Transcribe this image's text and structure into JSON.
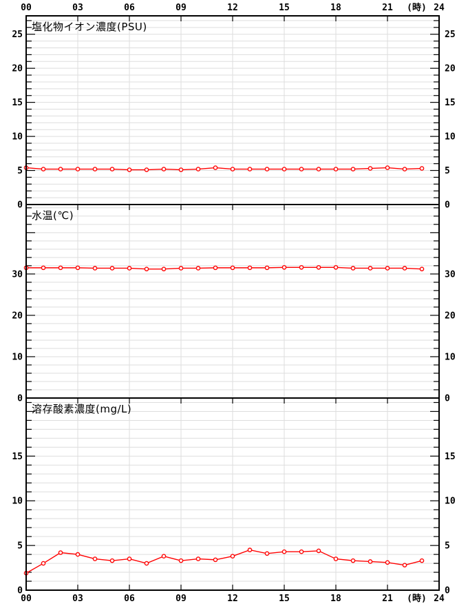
{
  "window": {
    "description": "Three stacked 24-hour water-quality time-series charts",
    "background": "#ffffff"
  },
  "colors": {
    "line": "#ff0000",
    "marker_fill": "#ffffff",
    "grid": "#dddddd",
    "axis": "#000000",
    "text": "#000000"
  },
  "x_axis": {
    "xlim": [
      0,
      24
    ],
    "tick_hours": [
      0,
      3,
      6,
      9,
      12,
      15,
      18,
      21,
      24
    ],
    "tick_labels": [
      "00",
      "03",
      "06",
      "09",
      "12",
      "15",
      "18",
      "21",
      "24"
    ],
    "unit_label": "(時)",
    "unit_label_hour": 22.7,
    "shown_top": true,
    "shown_bottom": true
  },
  "chart_data": [
    {
      "type": "line",
      "title": "塩化物イオン濃度(PSU)",
      "xlabel": "(時)",
      "ylabel": "",
      "x": [
        0,
        1,
        2,
        3,
        4,
        5,
        6,
        7,
        8,
        9,
        10,
        11,
        12,
        13,
        14,
        15,
        16,
        17,
        18,
        19,
        20,
        21,
        22,
        23
      ],
      "values": [
        5.4,
        5.2,
        5.2,
        5.2,
        5.2,
        5.2,
        5.1,
        5.1,
        5.2,
        5.1,
        5.2,
        5.4,
        5.2,
        5.2,
        5.2,
        5.2,
        5.2,
        5.2,
        5.2,
        5.2,
        5.3,
        5.4,
        5.2,
        5.3
      ],
      "ylim": [
        0,
        27.7
      ],
      "ytick_step": 1,
      "ylabel_step": 5,
      "ytick_labels": [
        0,
        5,
        10,
        15,
        20,
        25
      ],
      "grid": true,
      "legend": "none",
      "marker": "circle"
    },
    {
      "type": "line",
      "title": "水温(℃)",
      "xlabel": "(時)",
      "ylabel": "",
      "x": [
        0,
        1,
        2,
        3,
        4,
        5,
        6,
        7,
        8,
        9,
        10,
        11,
        12,
        13,
        14,
        15,
        16,
        17,
        18,
        19,
        20,
        21,
        22,
        23
      ],
      "values": [
        31.5,
        31.5,
        31.5,
        31.5,
        31.4,
        31.4,
        31.4,
        31.2,
        31.2,
        31.4,
        31.4,
        31.5,
        31.5,
        31.5,
        31.5,
        31.6,
        31.6,
        31.6,
        31.6,
        31.4,
        31.4,
        31.4,
        31.4,
        31.2
      ],
      "ylim": [
        0,
        46.8
      ],
      "ytick_step": 2,
      "ylabel_step": 10,
      "ytick_labels": [
        0,
        10,
        20,
        30
      ],
      "grid": true,
      "legend": "none",
      "marker": "circle"
    },
    {
      "type": "line",
      "title": "溶存酸素濃度(mg/L)",
      "xlabel": "(時)",
      "ylabel": "",
      "x": [
        0,
        1,
        2,
        3,
        4,
        5,
        6,
        7,
        8,
        9,
        10,
        11,
        12,
        13,
        14,
        15,
        16,
        17,
        18,
        19,
        20,
        21,
        22,
        23
      ],
      "values": [
        1.9,
        3.0,
        4.2,
        4.0,
        3.5,
        3.3,
        3.5,
        3.0,
        3.8,
        3.3,
        3.5,
        3.4,
        3.8,
        4.5,
        4.1,
        4.3,
        4.3,
        4.4,
        3.5,
        3.3,
        3.2,
        3.1,
        2.8,
        3.3
      ],
      "ylim": [
        0,
        21.5
      ],
      "ytick_step": 1,
      "ylabel_step": 5,
      "ytick_labels": [
        0,
        5,
        10,
        15
      ],
      "grid": true,
      "legend": "none",
      "marker": "circle"
    }
  ]
}
